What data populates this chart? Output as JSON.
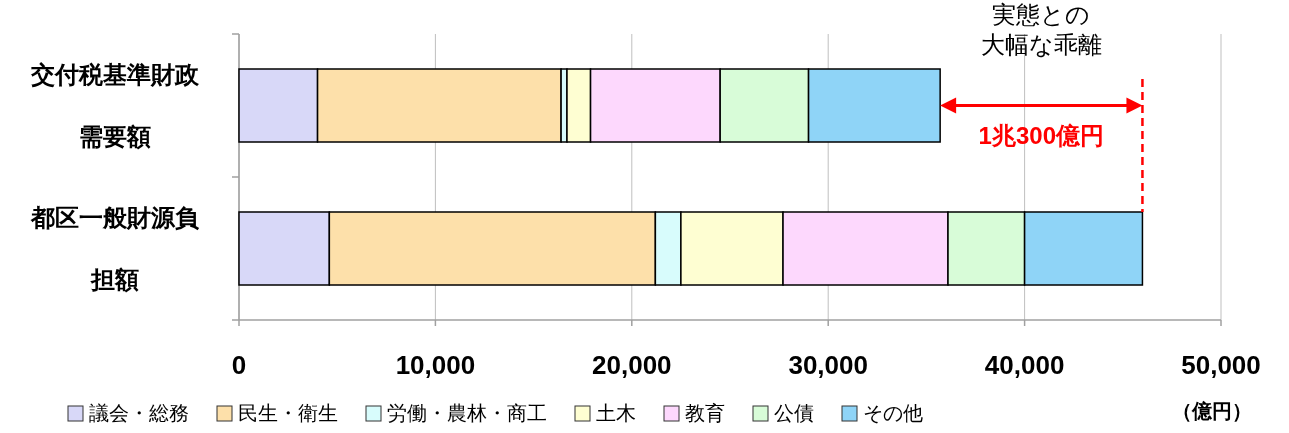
{
  "chart_data": {
    "type": "bar",
    "orientation": "horizontal",
    "stacked": true,
    "categories": [
      "交付税基準財政需要額",
      "都区一般財源負担額"
    ],
    "series": [
      {
        "name": "議会・総務",
        "color": "#d8d8f8",
        "values": [
          4000,
          4600
        ]
      },
      {
        "name": "民生・衛生",
        "color": "#fde0aa",
        "values": [
          12400,
          16600
        ]
      },
      {
        "name": "労働・農林・商工",
        "color": "#d8fcfc",
        "values": [
          300,
          1300
        ]
      },
      {
        "name": "土木",
        "color": "#fefed2",
        "values": [
          1200,
          5200
        ]
      },
      {
        "name": "教育",
        "color": "#fdd8fd",
        "values": [
          6600,
          8400
        ]
      },
      {
        "name": "公債",
        "color": "#d8fcd8",
        "values": [
          4500,
          3900
        ]
      },
      {
        "name": "その他",
        "color": "#8fd4f7",
        "values": [
          6700,
          6000
        ]
      }
    ],
    "xlim": [
      0,
      50000
    ],
    "xticks": [
      {
        "value": 0,
        "label": "0"
      },
      {
        "value": 10000,
        "label": "10,000"
      },
      {
        "value": 20000,
        "label": "20,000"
      },
      {
        "value": 30000,
        "label": "30,000"
      },
      {
        "value": 40000,
        "label": "40,000"
      },
      {
        "value": 50000,
        "label": "50,000"
      }
    ],
    "xlabel": "（億円）",
    "grid": "x",
    "legend": "bottom",
    "ref_lines": [
      {
        "axis": "x",
        "value": 46000,
        "color": "#ff0000",
        "line_style": "dashed"
      }
    ],
    "annotations": [
      "実態との",
      "大幅な乖離",
      "1兆300億円"
    ]
  }
}
